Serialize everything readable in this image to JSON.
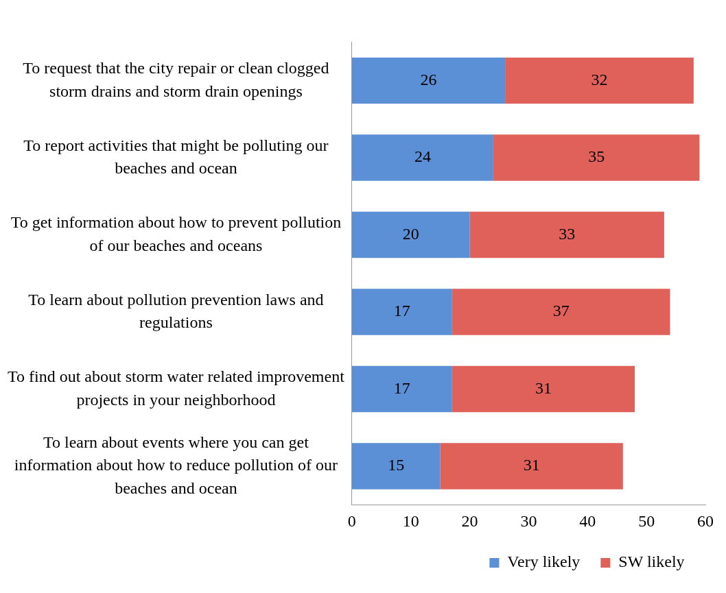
{
  "chart_data": {
    "type": "bar",
    "orientation": "horizontal",
    "stacked": true,
    "categories": [
      "To request that the city repair or clean clogged storm drains and storm drain openings",
      "To report activities that might be polluting our beaches and ocean",
      "To get information about how to prevent pollution of our beaches and oceans",
      "To learn about pollution prevention laws and regulations",
      "To find out about storm water related improvement projects in your neighborhood",
      "To learn about events where you can get information about how to reduce pollution of our beaches and ocean"
    ],
    "series": [
      {
        "name": "Very likely",
        "color": "#5b8fd6",
        "values": [
          26,
          24,
          20,
          17,
          17,
          15
        ]
      },
      {
        "name": "SW likely",
        "color": "#e0605a",
        "values": [
          32,
          35,
          33,
          37,
          31,
          31
        ]
      }
    ],
    "xlim": [
      0,
      60
    ],
    "xticks": [
      0,
      10,
      20,
      30,
      40,
      50,
      60
    ],
    "grid": false,
    "legend": "bottom right",
    "data_labels": true
  }
}
